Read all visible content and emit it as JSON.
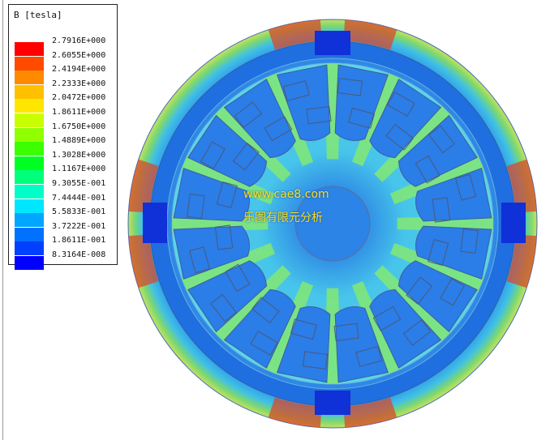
{
  "legend": {
    "title": "B [tesla]",
    "levels": [
      {
        "label": "2.7916E+000",
        "color": "#ff0000"
      },
      {
        "label": "2.6055E+000",
        "color": "#ff4a00"
      },
      {
        "label": "2.4194E+000",
        "color": "#ff8a00"
      },
      {
        "label": "2.2333E+000",
        "color": "#ffc000"
      },
      {
        "label": "2.0472E+000",
        "color": "#ffe600"
      },
      {
        "label": "1.8611E+000",
        "color": "#c8ff00"
      },
      {
        "label": "1.6750E+000",
        "color": "#90ff00"
      },
      {
        "label": "1.4889E+000",
        "color": "#3cff00"
      },
      {
        "label": "1.3028E+000",
        "color": "#00ff20"
      },
      {
        "label": "1.1167E+000",
        "color": "#00ff7a"
      },
      {
        "label": "9.3055E-001",
        "color": "#00ffc8"
      },
      {
        "label": "7.4444E-001",
        "color": "#00e6ff"
      },
      {
        "label": "5.5833E-001",
        "color": "#00a6ff"
      },
      {
        "label": "3.7222E-001",
        "color": "#0072ff"
      },
      {
        "label": "1.8611E-001",
        "color": "#0040ff"
      },
      {
        "label": "8.3164E-008",
        "color": "#0000ff"
      }
    ]
  },
  "watermark": {
    "url": "www.cae8.com",
    "cn": "乐图有限元分析"
  },
  "colors": {
    "yoke": "#1e6fe0",
    "ring_outer": "#2a86ea",
    "gap": "#46c8e8",
    "rotor_tooth": "#7ee67a",
    "stator_tooth": "#2b7de8",
    "shaft": "#2a82e6",
    "hot": "#d84a2a"
  }
}
